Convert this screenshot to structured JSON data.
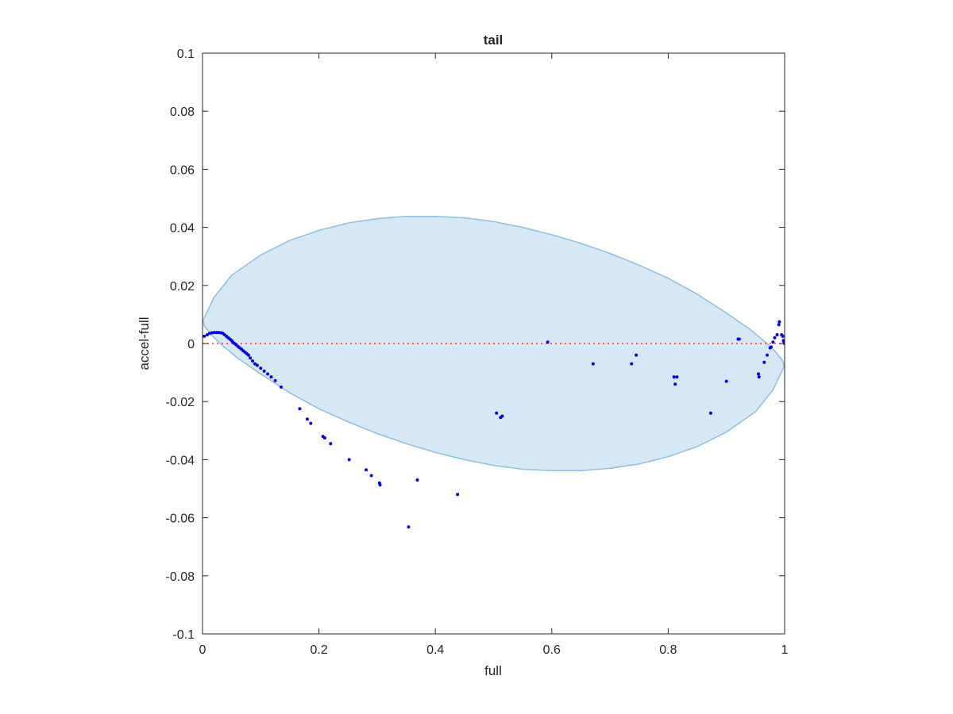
{
  "chart_data": {
    "type": "scatter",
    "title": "tail",
    "xlabel": "full",
    "ylabel": "accel-full",
    "xlim": [
      0,
      1
    ],
    "ylim": [
      -0.1,
      0.1
    ],
    "xticks": [
      0,
      0.2,
      0.4,
      0.6,
      0.8,
      1
    ],
    "xtick_labels": [
      "0",
      "0.2",
      "0.4",
      "0.6",
      "0.8",
      "1"
    ],
    "yticks": [
      -0.1,
      -0.08,
      -0.06,
      -0.04,
      -0.02,
      0,
      0.02,
      0.04,
      0.06,
      0.08,
      0.1
    ],
    "ytick_labels": [
      "-0.1",
      "-0.08",
      "-0.06",
      "-0.04",
      "-0.02",
      "0",
      "0.02",
      "0.04",
      "0.06",
      "0.08",
      "0.1"
    ],
    "grid": false,
    "legend": "none",
    "colors": {
      "points": "#0000ee",
      "zero_line": "#ff3333",
      "ellipse_fill": "#d7e8f5",
      "ellipse_edge": "#8dbfe0",
      "axes": "#262626"
    },
    "zero_line": {
      "y": 0,
      "style": "dotted"
    },
    "ellipse": {
      "polygon": [
        [
          0.001,
          0.008
        ],
        [
          0.02,
          0.016
        ],
        [
          0.05,
          0.0235
        ],
        [
          0.1,
          0.0305
        ],
        [
          0.15,
          0.0355
        ],
        [
          0.2,
          0.039
        ],
        [
          0.25,
          0.0415
        ],
        [
          0.3,
          0.043
        ],
        [
          0.35,
          0.0438
        ],
        [
          0.4,
          0.0438
        ],
        [
          0.45,
          0.0433
        ],
        [
          0.5,
          0.042
        ],
        [
          0.55,
          0.04
        ],
        [
          0.6,
          0.0375
        ],
        [
          0.65,
          0.0345
        ],
        [
          0.7,
          0.031
        ],
        [
          0.75,
          0.027
        ],
        [
          0.8,
          0.0225
        ],
        [
          0.85,
          0.017
        ],
        [
          0.9,
          0.0105
        ],
        [
          0.94,
          0.005
        ],
        [
          0.97,
          0.0
        ],
        [
          0.985,
          -0.003
        ],
        [
          0.997,
          -0.006
        ],
        [
          0.999,
          -0.008
        ],
        [
          0.98,
          -0.016
        ],
        [
          0.95,
          -0.0235
        ],
        [
          0.9,
          -0.0305
        ],
        [
          0.85,
          -0.0355
        ],
        [
          0.8,
          -0.039
        ],
        [
          0.75,
          -0.0415
        ],
        [
          0.7,
          -0.043
        ],
        [
          0.65,
          -0.0438
        ],
        [
          0.6,
          -0.0438
        ],
        [
          0.55,
          -0.0433
        ],
        [
          0.5,
          -0.042
        ],
        [
          0.45,
          -0.04
        ],
        [
          0.4,
          -0.0375
        ],
        [
          0.35,
          -0.0345
        ],
        [
          0.3,
          -0.031
        ],
        [
          0.25,
          -0.027
        ],
        [
          0.2,
          -0.0225
        ],
        [
          0.15,
          -0.017
        ],
        [
          0.1,
          -0.0105
        ],
        [
          0.06,
          -0.005
        ],
        [
          0.03,
          0.0
        ],
        [
          0.015,
          0.003
        ],
        [
          0.003,
          0.006
        ]
      ]
    },
    "points": [
      [
        0.003,
        0.0025
      ],
      [
        0.008,
        0.003
      ],
      [
        0.012,
        0.0035
      ],
      [
        0.016,
        0.0037
      ],
      [
        0.02,
        0.0038
      ],
      [
        0.024,
        0.0038
      ],
      [
        0.028,
        0.0038
      ],
      [
        0.032,
        0.0037
      ],
      [
        0.035,
        0.0035
      ],
      [
        0.038,
        0.003
      ],
      [
        0.041,
        0.0025
      ],
      [
        0.044,
        0.002
      ],
      [
        0.047,
        0.0015
      ],
      [
        0.05,
        0.001
      ],
      [
        0.052,
        0.0005
      ],
      [
        0.055,
        0.0
      ],
      [
        0.058,
        -0.0005
      ],
      [
        0.061,
        -0.001
      ],
      [
        0.064,
        -0.0015
      ],
      [
        0.067,
        -0.002
      ],
      [
        0.07,
        -0.0025
      ],
      [
        0.073,
        -0.003
      ],
      [
        0.076,
        -0.0035
      ],
      [
        0.079,
        -0.004
      ],
      [
        0.082,
        -0.005
      ],
      [
        0.086,
        -0.006
      ],
      [
        0.09,
        -0.007
      ],
      [
        0.094,
        -0.0075
      ],
      [
        0.1,
        -0.0085
      ],
      [
        0.106,
        -0.0095
      ],
      [
        0.112,
        -0.0105
      ],
      [
        0.118,
        -0.0115
      ],
      [
        0.125,
        -0.0128
      ],
      [
        0.135,
        -0.015
      ],
      [
        0.167,
        -0.0225
      ],
      [
        0.18,
        -0.026
      ],
      [
        0.186,
        -0.0275
      ],
      [
        0.207,
        -0.032
      ],
      [
        0.21,
        -0.0325
      ],
      [
        0.22,
        -0.0345
      ],
      [
        0.252,
        -0.04
      ],
      [
        0.281,
        -0.0435
      ],
      [
        0.29,
        -0.0455
      ],
      [
        0.304,
        -0.048
      ],
      [
        0.305,
        -0.0487
      ],
      [
        0.354,
        -0.0632
      ],
      [
        0.369,
        -0.047
      ],
      [
        0.438,
        -0.052
      ],
      [
        0.505,
        -0.024
      ],
      [
        0.512,
        -0.0255
      ],
      [
        0.515,
        -0.025
      ],
      [
        0.593,
        0.0005
      ],
      [
        0.671,
        -0.007
      ],
      [
        0.737,
        -0.007
      ],
      [
        0.745,
        -0.004
      ],
      [
        0.81,
        -0.0115
      ],
      [
        0.812,
        -0.014
      ],
      [
        0.815,
        -0.0115
      ],
      [
        0.873,
        -0.024
      ],
      [
        0.9,
        -0.013
      ],
      [
        0.92,
        0.0015
      ],
      [
        0.922,
        0.0015
      ],
      [
        0.955,
        -0.0105
      ],
      [
        0.956,
        -0.0115
      ],
      [
        0.965,
        -0.0065
      ],
      [
        0.97,
        -0.004
      ],
      [
        0.975,
        -0.0015
      ],
      [
        0.977,
        -0.0012
      ],
      [
        0.98,
        0.0005
      ],
      [
        0.983,
        0.002
      ],
      [
        0.987,
        0.003
      ],
      [
        0.99,
        0.0065
      ],
      [
        0.991,
        0.0075
      ],
      [
        0.995,
        0.003
      ],
      [
        0.997,
        0.0025
      ],
      [
        0.998,
        0.001
      ],
      [
        0.999,
        0.0005
      ],
      [
        1.0,
        0.0
      ]
    ]
  }
}
